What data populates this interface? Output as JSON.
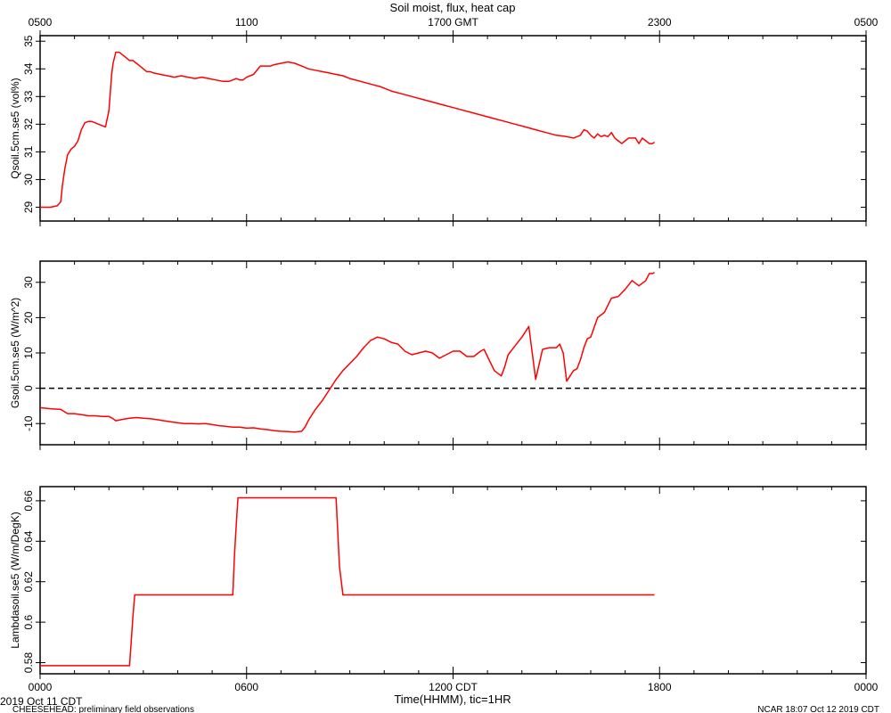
{
  "title": "Soil moist, flux, heat cap",
  "top_axis": {
    "tick_labels": [
      "0500",
      "1100",
      "1700 GMT",
      "2300",
      "0500"
    ],
    "tick_hours": [
      0,
      6,
      12,
      18,
      24
    ]
  },
  "bottom_axis": {
    "tick_labels": [
      "0000",
      "0600",
      "1200 CDT",
      "1800",
      "0000"
    ],
    "tick_hours": [
      0,
      6,
      12,
      18,
      24
    ],
    "xlabel": "Time(HHMM), tic=1HR"
  },
  "footer": {
    "date": "2019 Oct 11 CDT",
    "project": "CHEESEHEAD: preliminary field observations",
    "credit": "NCAR 18:07 Oct 12 2019 CDT"
  },
  "colors": {
    "series": "#ff0000",
    "axis": "#000000"
  },
  "chart_data": [
    {
      "type": "line",
      "ylabel": "Qsoil.5cm.se5 (vol%)",
      "xlim": [
        0,
        24
      ],
      "ylim": [
        28.5,
        35.2
      ],
      "yticks": [
        29,
        30,
        31,
        32,
        33,
        34,
        35
      ],
      "series": [
        {
          "x": [
            0,
            0.3,
            0.5,
            0.6,
            0.65,
            0.72,
            0.8,
            0.9,
            1.0,
            1.1,
            1.2,
            1.3,
            1.4,
            1.5,
            1.6,
            1.8,
            1.9,
            2.0,
            2.08,
            2.12,
            2.2,
            2.3,
            2.4,
            2.5,
            2.6,
            2.7,
            2.8,
            2.9,
            3.0,
            3.1,
            3.2,
            3.3,
            3.5,
            3.7,
            3.9,
            4.1,
            4.3,
            4.5,
            4.7,
            4.9,
            5.1,
            5.3,
            5.5,
            5.6,
            5.7,
            5.8,
            5.9,
            6.0,
            6.2,
            6.4,
            6.6,
            6.7,
            6.8,
            7.0,
            7.2,
            7.4,
            7.6,
            7.8,
            8.0,
            8.2,
            8.4,
            8.6,
            8.8,
            9.0,
            9.3,
            9.6,
            9.9,
            10.2,
            10.5,
            10.8,
            11.1,
            11.4,
            11.7,
            12.0,
            12.3,
            12.6,
            12.9,
            13.2,
            13.5,
            13.8,
            14.1,
            14.4,
            14.7,
            15.0,
            15.3,
            15.5,
            15.7,
            15.8,
            15.9,
            16.0,
            16.1,
            16.2,
            16.3,
            16.4,
            16.5,
            16.6,
            16.7,
            16.8,
            16.9,
            17.0,
            17.1,
            17.2,
            17.3,
            17.4,
            17.5,
            17.6,
            17.7,
            17.8,
            17.85
          ],
          "y": [
            29.0,
            29.0,
            29.05,
            29.2,
            29.8,
            30.4,
            30.9,
            31.1,
            31.2,
            31.4,
            31.8,
            32.05,
            32.1,
            32.1,
            32.05,
            31.95,
            31.9,
            32.5,
            33.8,
            34.2,
            34.6,
            34.6,
            34.5,
            34.4,
            34.3,
            34.3,
            34.2,
            34.1,
            34.0,
            33.9,
            33.9,
            33.85,
            33.8,
            33.75,
            33.7,
            33.75,
            33.7,
            33.65,
            33.7,
            33.65,
            33.6,
            33.55,
            33.55,
            33.6,
            33.65,
            33.6,
            33.6,
            33.7,
            33.8,
            34.1,
            34.1,
            34.1,
            34.15,
            34.2,
            34.25,
            34.2,
            34.1,
            34.0,
            33.95,
            33.9,
            33.85,
            33.8,
            33.75,
            33.65,
            33.55,
            33.45,
            33.35,
            33.2,
            33.1,
            33.0,
            32.9,
            32.8,
            32.7,
            32.6,
            32.5,
            32.4,
            32.3,
            32.2,
            32.1,
            32.0,
            31.9,
            31.8,
            31.7,
            31.6,
            31.55,
            31.5,
            31.6,
            31.8,
            31.75,
            31.6,
            31.5,
            31.65,
            31.55,
            31.6,
            31.55,
            31.7,
            31.5,
            31.4,
            31.3,
            31.4,
            31.5,
            31.5,
            31.5,
            31.3,
            31.5,
            31.4,
            31.3,
            31.3,
            31.35
          ]
        }
      ]
    },
    {
      "type": "line",
      "ylabel": "Gsoil.5cm.se5 (W/m^2)",
      "xlim": [
        0,
        24
      ],
      "ylim": [
        -16,
        36
      ],
      "yticks": [
        -10,
        0,
        10,
        20,
        30
      ],
      "reference_line": {
        "y": 0,
        "style": "dashed"
      },
      "series": [
        {
          "x": [
            0,
            0.3,
            0.6,
            0.8,
            1.0,
            1.2,
            1.4,
            1.6,
            1.8,
            2.0,
            2.1,
            2.2,
            2.4,
            2.6,
            2.8,
            3.0,
            3.2,
            3.4,
            3.6,
            3.8,
            4.0,
            4.2,
            4.4,
            4.6,
            4.8,
            5.0,
            5.2,
            5.4,
            5.6,
            5.8,
            6.0,
            6.2,
            6.4,
            6.6,
            6.8,
            7.0,
            7.2,
            7.4,
            7.6,
            7.7,
            7.8,
            8.0,
            8.2,
            8.4,
            8.6,
            8.8,
            9.0,
            9.2,
            9.4,
            9.6,
            9.8,
            10.0,
            10.2,
            10.4,
            10.6,
            10.8,
            11.0,
            11.2,
            11.4,
            11.6,
            11.8,
            12.0,
            12.2,
            12.4,
            12.6,
            12.8,
            12.9,
            13.0,
            13.2,
            13.4,
            13.5,
            13.6,
            13.8,
            14.0,
            14.2,
            14.4,
            14.6,
            14.8,
            15.0,
            15.1,
            15.2,
            15.3,
            15.5,
            15.6,
            15.7,
            15.8,
            15.9,
            16.0,
            16.2,
            16.4,
            16.6,
            16.8,
            17.0,
            17.2,
            17.4,
            17.6,
            17.7,
            17.8,
            17.85
          ],
          "y": [
            -5.5,
            -5.8,
            -6.0,
            -7.2,
            -7.2,
            -7.5,
            -7.8,
            -7.8,
            -8.0,
            -8.0,
            -8.5,
            -9.2,
            -8.8,
            -8.5,
            -8.3,
            -8.5,
            -8.6,
            -8.9,
            -9.2,
            -9.5,
            -9.8,
            -10.0,
            -10.0,
            -10.1,
            -10.0,
            -10.3,
            -10.6,
            -10.8,
            -11.0,
            -11.0,
            -11.3,
            -11.2,
            -11.5,
            -11.7,
            -12.0,
            -12.2,
            -12.3,
            -12.4,
            -12.2,
            -11.0,
            -9.0,
            -6.0,
            -3.5,
            -0.5,
            2.5,
            5.0,
            7.0,
            9.0,
            11.5,
            13.5,
            14.5,
            14.0,
            13.0,
            12.5,
            10.5,
            9.5,
            10.0,
            10.5,
            10.0,
            8.5,
            9.5,
            10.5,
            10.5,
            9.0,
            9.0,
            10.5,
            11.0,
            9.0,
            5.0,
            3.5,
            6.0,
            9.5,
            12.0,
            14.5,
            17.5,
            2.5,
            11.0,
            11.5,
            11.5,
            12.5,
            10.0,
            2.0,
            5.0,
            5.5,
            8.0,
            11.5,
            14.0,
            14.5,
            20.0,
            21.5,
            25.5,
            26.0,
            28.0,
            30.5,
            29.0,
            30.5,
            32.5,
            32.5,
            32.8
          ]
        }
      ]
    },
    {
      "type": "line",
      "ylabel": "Lambdasoil.se5 (W/m/DegK)",
      "xlim": [
        0,
        24
      ],
      "ylim": [
        0.5745,
        0.667
      ],
      "yticks": [
        0.58,
        0.6,
        0.62,
        0.64,
        0.66
      ],
      "series": [
        {
          "x": [
            0,
            2.6,
            2.7,
            2.75,
            5.6,
            5.65,
            5.7,
            5.75,
            8.6,
            8.7,
            8.8,
            17.85
          ],
          "y": [
            0.5785,
            0.5785,
            0.6035,
            0.6135,
            0.6135,
            0.6335,
            0.6485,
            0.6615,
            0.6615,
            0.6275,
            0.6135,
            0.6135
          ]
        }
      ]
    }
  ]
}
